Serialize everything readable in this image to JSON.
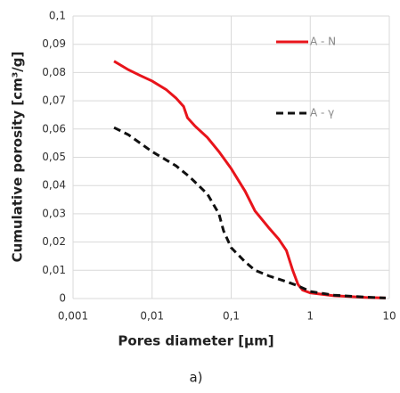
{
  "chart_data": {
    "type": "line",
    "xlabel": "Pores diameter [µm]",
    "ylabel": "Cumulative porosity [cm³/g]",
    "xscale": "log",
    "grid": true,
    "legend": "upper right",
    "xlim": [
      0.001,
      10
    ],
    "xticks": [
      {
        "value": 0.001,
        "label": "0,001"
      },
      {
        "value": 0.01,
        "label": "0,01"
      },
      {
        "value": 0.1,
        "label": "0,1"
      },
      1,
      10
    ],
    "ylim": [
      0,
      0.1
    ],
    "yticks": [
      0,
      {
        "value": 0.01,
        "label": "0,01"
      },
      {
        "value": 0.02,
        "label": "0,02"
      },
      {
        "value": 0.03,
        "label": "0,03"
      },
      {
        "value": 0.04,
        "label": "0,04"
      },
      {
        "value": 0.05,
        "label": "0,05"
      },
      {
        "value": 0.06,
        "label": "0,06"
      },
      {
        "value": 0.07,
        "label": "0,07"
      },
      {
        "value": 0.08,
        "label": "0,08"
      },
      {
        "value": 0.09,
        "label": "0,09"
      },
      {
        "value": 0.1,
        "label": "0,1"
      }
    ],
    "series": [
      {
        "name": "A - N",
        "color": "#e8141b",
        "dash": false,
        "x": [
          0.0033,
          0.005,
          0.007,
          0.01,
          0.015,
          0.02,
          0.025,
          0.028,
          0.035,
          0.05,
          0.07,
          0.1,
          0.15,
          0.2,
          0.3,
          0.4,
          0.5,
          0.6,
          0.7,
          0.8,
          1,
          2,
          5,
          9
        ],
        "values": [
          0.084,
          0.081,
          0.079,
          0.077,
          0.074,
          0.071,
          0.068,
          0.064,
          0.061,
          0.057,
          0.052,
          0.046,
          0.038,
          0.031,
          0.025,
          0.021,
          0.017,
          0.01,
          0.005,
          0.003,
          0.002,
          0.001,
          0.0004,
          0.0002
        ]
      },
      {
        "name": "A - γ",
        "color": "#111111",
        "dash": true,
        "x": [
          0.0033,
          0.005,
          0.01,
          0.02,
          0.03,
          0.05,
          0.07,
          0.08,
          0.1,
          0.15,
          0.2,
          0.3,
          0.5,
          0.7,
          1,
          2,
          5,
          9
        ],
        "values": [
          0.0605,
          0.058,
          0.052,
          0.047,
          0.043,
          0.037,
          0.03,
          0.024,
          0.018,
          0.013,
          0.01,
          0.008,
          0.006,
          0.0045,
          0.0025,
          0.0012,
          0.0005,
          0.0002
        ]
      }
    ]
  },
  "caption": "a)"
}
